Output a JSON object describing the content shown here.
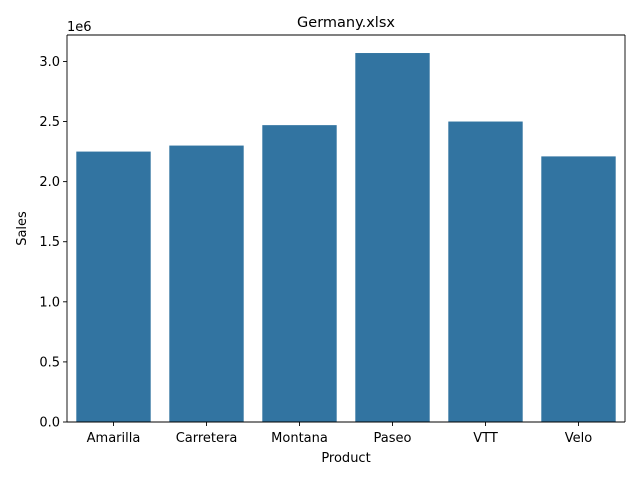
{
  "chart_data": {
    "type": "bar",
    "title": "Germany.xlsx",
    "xlabel": "Product",
    "ylabel": "Sales",
    "categories": [
      "Amarilla",
      "Carretera",
      "Montana",
      "Paseo",
      "VTT",
      "Velo"
    ],
    "values": [
      2250000,
      2300000,
      2470000,
      3070000,
      2500000,
      2210000
    ],
    "ylim": [
      0,
      3220000
    ],
    "yticks": [
      0,
      500000,
      1000000,
      1500000,
      2000000,
      2500000,
      3000000
    ],
    "ytick_labels": [
      "0.0",
      "0.5",
      "1.0",
      "1.5",
      "2.0",
      "2.5",
      "3.0"
    ],
    "y_offset_label": "1e6",
    "grid": false,
    "bar_color": "#3274a1"
  }
}
